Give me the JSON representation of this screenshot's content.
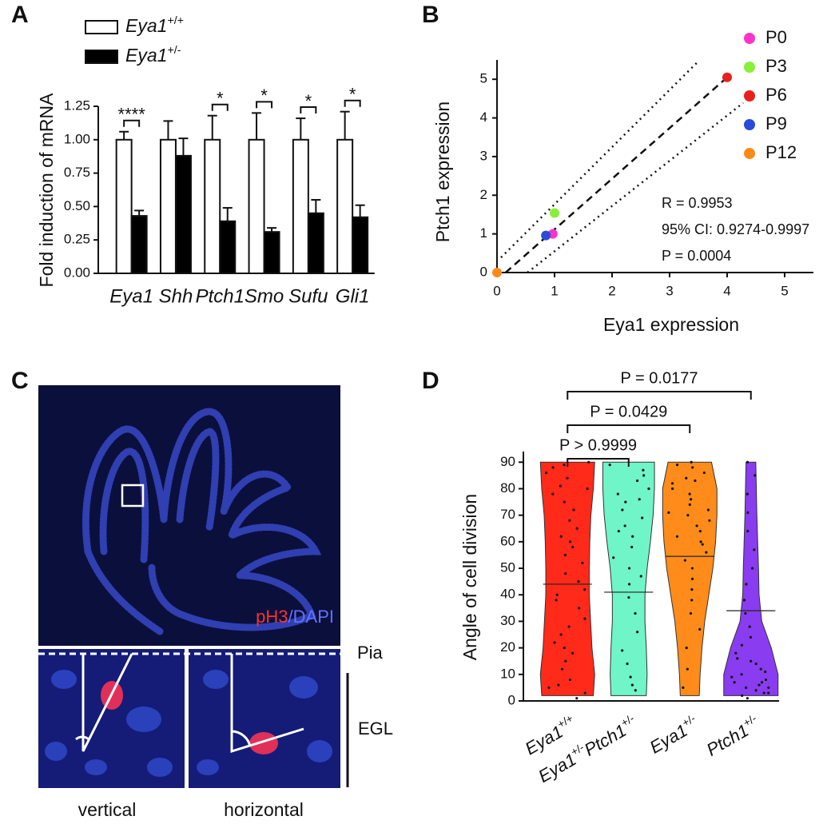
{
  "panel_labels": [
    "A",
    "B",
    "C",
    "D"
  ],
  "chart_data": [
    {
      "type": "bar",
      "ylabel": "Fold induction of mRNA",
      "categories": [
        "Eya1",
        "Shh",
        "Ptch1",
        "Smo",
        "Sufu",
        "Gli1"
      ],
      "series": [
        {
          "name": "Eya1",
          "name_sup": "+/+",
          "color": "#ffffff",
          "values": [
            1,
            1,
            1,
            1,
            1,
            1
          ],
          "errors": [
            0.06,
            0.14,
            0.18,
            0.2,
            0.16,
            0.21
          ]
        },
        {
          "name": "Eya1",
          "name_sup": "+/-",
          "color": "#000000",
          "values": [
            0.43,
            0.88,
            0.39,
            0.31,
            0.45,
            0.42
          ],
          "errors": [
            0.04,
            0.13,
            0.1,
            0.03,
            0.1,
            0.09
          ]
        }
      ],
      "significance": [
        "****",
        null,
        "*",
        "*",
        "*",
        "*"
      ],
      "ylim": [
        0,
        1.25
      ],
      "yticks": [
        {
          "value": 0,
          "label": "0.00"
        },
        {
          "value": 0.25,
          "label": "0.25"
        },
        {
          "value": 0.5,
          "label": "0.50"
        },
        {
          "value": 0.75,
          "label": "0.75"
        },
        {
          "value": 1,
          "label": "1.00"
        },
        {
          "value": 1.25,
          "label": "1.25"
        }
      ],
      "legend": "upper left"
    },
    {
      "type": "scatter",
      "xlabel": "Eya1 expression",
      "ylabel": "Ptch1 expression",
      "series": [
        {
          "name": "P0",
          "color": "#ff33cc",
          "x": [
            0.97
          ],
          "values": [
            1.0
          ]
        },
        {
          "name": "P3",
          "color": "#88f03a",
          "x": [
            1.0
          ],
          "values": [
            1.54
          ]
        },
        {
          "name": "P6",
          "color": "#e8201e",
          "x": [
            4.0
          ],
          "values": [
            5.05
          ]
        },
        {
          "name": "P9",
          "color": "#2a4ad8",
          "x": [
            0.85
          ],
          "values": [
            0.96
          ]
        },
        {
          "name": "P12",
          "color": "#ff8a1a",
          "x": [
            0
          ],
          "values": [
            0
          ]
        }
      ],
      "fit": {
        "x": [
          0.15,
          4.0
        ],
        "values": [
          0,
          5.05
        ]
      },
      "ci_upper": {
        "x": [
          0.07,
          3.49
        ],
        "values": [
          0.39,
          5.45
        ]
      },
      "ci_lower": {
        "x": [
          0.53,
          4.28
        ],
        "values": [
          0,
          4.39
        ]
      },
      "annotations": [
        "R = 0.9953",
        "95% CI: 0.9274-0.9997",
        "P = 0.0004"
      ],
      "xlim": [
        0,
        5.5
      ],
      "ylim": [
        0,
        5.5
      ],
      "xticks": [
        0,
        1,
        2,
        3,
        4,
        5
      ],
      "yticks": [
        0,
        1,
        2,
        3,
        4,
        5
      ],
      "legend": "upper right"
    },
    {
      "type": "violin",
      "ylabel": "Angle of cell division",
      "categories": [
        [
          [
            "Eya1",
            "+/+"
          ]
        ],
        [
          [
            "Eya1",
            "+/-"
          ],
          [
            "Ptch1",
            "+/-"
          ]
        ],
        [
          [
            "Eya1",
            "+/-"
          ]
        ],
        [
          [
            "Ptch1",
            "+/-"
          ]
        ]
      ],
      "colors": [
        "#ff2a1a",
        "#6ff5c8",
        "#ff8c1a",
        "#8a3cf0"
      ],
      "medians": [
        44,
        41,
        54.5,
        34
      ],
      "density_y": [
        2,
        10,
        20,
        30,
        40,
        50,
        60,
        70,
        80,
        90
      ],
      "density": [
        [
          0.95,
          1,
          0.9,
          0.85,
          0.8,
          0.8,
          0.82,
          0.86,
          0.95,
          1
        ],
        [
          0.65,
          0.68,
          0.65,
          0.6,
          0.6,
          0.68,
          0.8,
          0.9,
          0.95,
          0.95
        ],
        [
          0.35,
          0.38,
          0.45,
          0.55,
          0.7,
          0.85,
          0.95,
          1,
          1,
          0.8
        ],
        [
          1,
          1,
          0.75,
          0.4,
          0.3,
          0.28,
          0.25,
          0.22,
          0.2,
          0.18
        ]
      ],
      "points": [
        [
          3,
          5,
          8,
          12,
          15,
          18,
          22,
          25,
          28,
          31,
          35,
          38,
          42,
          45,
          48,
          52,
          55,
          58,
          62,
          65,
          68,
          72,
          75,
          78,
          81,
          84,
          86,
          88,
          89,
          90,
          1,
          6,
          20,
          40,
          60,
          80
        ],
        [
          4,
          9,
          14,
          19,
          26,
          33,
          39,
          44,
          50,
          54,
          58,
          62,
          66,
          69,
          72,
          75,
          78,
          80,
          83,
          85,
          87,
          89,
          6,
          47,
          64,
          76
        ],
        [
          5,
          12,
          20,
          27,
          33,
          38,
          42,
          46,
          50,
          53,
          56,
          59,
          62,
          64,
          66,
          68,
          70,
          72,
          74,
          76,
          78,
          80,
          82,
          84,
          86,
          88,
          89,
          90,
          60,
          71,
          83
        ],
        [
          1,
          2,
          3,
          4,
          5,
          6,
          7,
          8,
          9,
          10,
          12,
          14,
          16,
          18,
          21,
          24,
          28,
          33,
          38,
          44,
          50,
          57,
          64,
          71,
          78,
          85,
          90,
          3,
          5,
          7,
          11,
          15
        ]
      ],
      "comparisons": [
        {
          "groups": [
            0,
            1
          ],
          "label": "P > 0.9999"
        },
        {
          "groups": [
            0,
            2
          ],
          "label": "P = 0.0429"
        },
        {
          "groups": [
            0,
            3
          ],
          "label": "P = 0.0177"
        }
      ],
      "ylim": [
        0,
        94
      ],
      "yticks": [
        0,
        10,
        20,
        30,
        40,
        50,
        60,
        70,
        80,
        90
      ]
    }
  ],
  "micrograph": {
    "stain_1": "pH3",
    "stain_2": "/DAPI",
    "pia": "Pia",
    "egl": "EGL",
    "captions": [
      "vertical",
      "horizontal"
    ]
  }
}
